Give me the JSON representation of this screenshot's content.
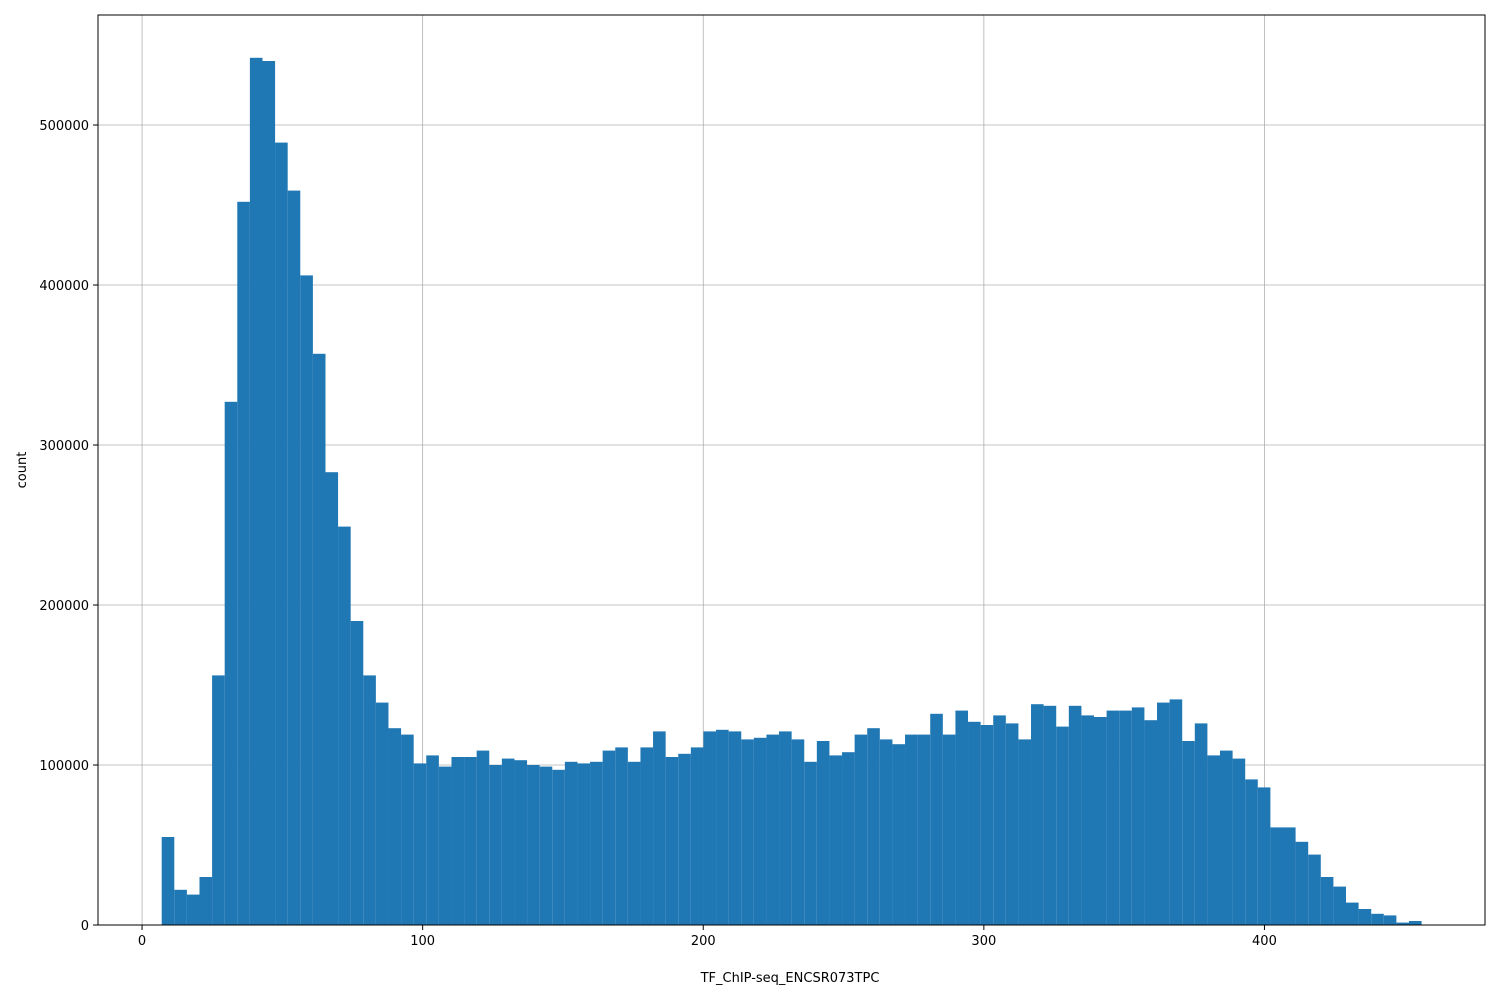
{
  "chart_data": {
    "type": "histogram",
    "xlabel": "TF_ChIP-seq_ENCSR073TPC",
    "ylabel": "count",
    "color": "#1f77b4",
    "grid": true,
    "bins": [
      7,
      11.49,
      15.98,
      20.47,
      24.96,
      29.45,
      33.94,
      38.43,
      42.92,
      47.41,
      51.9,
      56.39,
      60.88,
      65.37,
      69.86,
      74.35,
      78.84,
      83.33,
      87.82,
      92.31,
      96.8,
      101.29,
      105.78,
      110.27,
      114.76,
      119.25,
      123.74,
      128.23,
      132.72,
      137.21,
      141.7,
      146.19,
      150.68,
      155.17,
      159.66,
      164.15,
      168.64,
      173.13,
      177.62,
      182.11,
      186.6,
      191.09,
      195.58,
      200.07,
      204.56,
      209.05,
      213.54,
      218.03,
      222.52,
      227.01,
      231.5,
      235.99,
      240.48,
      244.97,
      249.46,
      253.95,
      258.44,
      262.93,
      267.42,
      271.91,
      276.4,
      280.89,
      285.38,
      289.87,
      294.36,
      298.85,
      303.34,
      307.83,
      312.32,
      316.81,
      321.3,
      325.79,
      330.28,
      334.77,
      339.26,
      343.75,
      348.24,
      352.73,
      357.22,
      361.71,
      366.2,
      370.69,
      375.18,
      379.67,
      384.16,
      388.65,
      393.14,
      397.63,
      402.12,
      406.61,
      411.1,
      415.59,
      420.08,
      424.57,
      429.06,
      433.55,
      438.04,
      442.53,
      447.02,
      451.51,
      456
    ],
    "counts": [
      55000,
      22000,
      19000,
      30000,
      156000,
      327000,
      452000,
      542000,
      540000,
      489000,
      459000,
      406000,
      357000,
      283000,
      249000,
      190000,
      156000,
      139000,
      123000,
      119000,
      101000,
      106000,
      99000,
      105000,
      105000,
      109000,
      100000,
      104000,
      103000,
      100000,
      99000,
      97000,
      102000,
      101000,
      102000,
      109000,
      111000,
      102000,
      111000,
      121000,
      105000,
      107000,
      111000,
      121000,
      122000,
      121000,
      116000,
      117000,
      119000,
      121000,
      116000,
      102000,
      115000,
      106000,
      108000,
      119000,
      123000,
      116000,
      113000,
      119000,
      119000,
      132000,
      119000,
      134000,
      127000,
      125000,
      131000,
      126000,
      116000,
      138000,
      137000,
      124000,
      137000,
      131000,
      130000,
      134000,
      134000,
      136000,
      128000,
      139000,
      141000,
      115000,
      126000,
      106000,
      109000,
      104000,
      91000,
      86000,
      61000,
      61000,
      52000,
      44000,
      30000,
      24000,
      14000,
      10000,
      7000,
      6000,
      1500,
      2500
    ],
    "xlim": [
      -15.7,
      478.6
    ],
    "ylim": [
      0,
      568750
    ],
    "xticks": [
      0,
      100,
      200,
      300,
      400
    ],
    "yticks": [
      0,
      100000,
      200000,
      300000,
      400000,
      500000
    ]
  }
}
